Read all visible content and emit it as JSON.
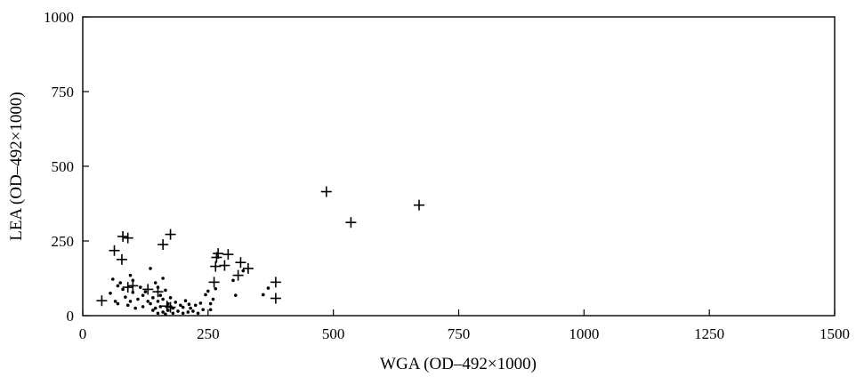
{
  "chart_data": {
    "type": "scatter",
    "title": "",
    "xlabel": "WGA (OD–492×1000)",
    "ylabel": "LEA (OD–492×1000)",
    "xlim": [
      0,
      1500
    ],
    "ylim": [
      0,
      1000
    ],
    "xticks": [
      0,
      250,
      500,
      750,
      1000,
      1250,
      1500
    ],
    "yticks": [
      0,
      250,
      500,
      750,
      1000
    ],
    "xtick_labels": [
      "0",
      "250",
      "500",
      "750",
      "1000",
      "1250",
      "1500"
    ],
    "ytick_labels": [
      "0",
      "250",
      "500",
      "750",
      "1000"
    ],
    "grid": false,
    "legend": "none",
    "series": [
      {
        "marker": "plus",
        "points": [
          [
            38,
            50
          ],
          [
            63,
            218
          ],
          [
            78,
            188
          ],
          [
            80,
            265
          ],
          [
            90,
            260
          ],
          [
            90,
            95
          ],
          [
            100,
            100
          ],
          [
            130,
            88
          ],
          [
            150,
            80
          ],
          [
            160,
            238
          ],
          [
            175,
            272
          ],
          [
            168,
            32
          ],
          [
            175,
            28
          ],
          [
            262,
            112
          ],
          [
            265,
            165
          ],
          [
            267,
            195
          ],
          [
            270,
            208
          ],
          [
            283,
            168
          ],
          [
            290,
            205
          ],
          [
            310,
            135
          ],
          [
            315,
            178
          ],
          [
            330,
            158
          ],
          [
            385,
            112
          ],
          [
            385,
            58
          ],
          [
            486,
            415
          ],
          [
            535,
            312
          ],
          [
            671,
            370
          ]
        ]
      },
      {
        "marker": "dot",
        "points": [
          [
            55,
            75
          ],
          [
            60,
            122
          ],
          [
            65,
            48
          ],
          [
            70,
            100
          ],
          [
            70,
            40
          ],
          [
            75,
            110
          ],
          [
            80,
            88
          ],
          [
            85,
            62
          ],
          [
            90,
            35
          ],
          [
            95,
            48
          ],
          [
            95,
            135
          ],
          [
            100,
            118
          ],
          [
            100,
            78
          ],
          [
            105,
            25
          ],
          [
            110,
            55
          ],
          [
            115,
            95
          ],
          [
            120,
            30
          ],
          [
            120,
            68
          ],
          [
            125,
            80
          ],
          [
            130,
            48
          ],
          [
            135,
            158
          ],
          [
            135,
            40
          ],
          [
            140,
            60
          ],
          [
            140,
            18
          ],
          [
            145,
            110
          ],
          [
            145,
            25
          ],
          [
            150,
            95
          ],
          [
            150,
            48
          ],
          [
            150,
            8
          ],
          [
            155,
            68
          ],
          [
            155,
            30
          ],
          [
            160,
            125
          ],
          [
            160,
            55
          ],
          [
            160,
            12
          ],
          [
            165,
            5
          ],
          [
            165,
            85
          ],
          [
            170,
            40
          ],
          [
            170,
            18
          ],
          [
            175,
            60
          ],
          [
            180,
            8
          ],
          [
            180,
            25
          ],
          [
            185,
            45
          ],
          [
            190,
            15
          ],
          [
            195,
            35
          ],
          [
            200,
            28
          ],
          [
            200,
            8
          ],
          [
            205,
            50
          ],
          [
            210,
            12
          ],
          [
            212,
            38
          ],
          [
            215,
            25
          ],
          [
            220,
            15
          ],
          [
            225,
            35
          ],
          [
            230,
            8
          ],
          [
            235,
            42
          ],
          [
            240,
            20
          ],
          [
            245,
            70
          ],
          [
            250,
            82
          ],
          [
            255,
            40
          ],
          [
            255,
            20
          ],
          [
            260,
            55
          ],
          [
            265,
            90
          ],
          [
            300,
            118
          ],
          [
            305,
            68
          ],
          [
            320,
            150
          ],
          [
            360,
            70
          ],
          [
            370,
            92
          ]
        ]
      }
    ]
  }
}
